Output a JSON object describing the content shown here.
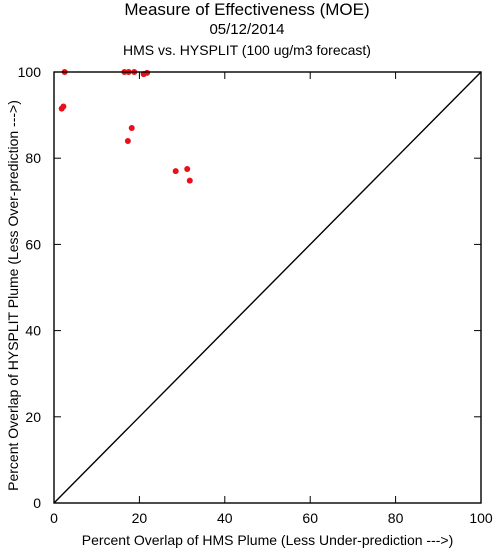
{
  "chart_data": {
    "type": "scatter",
    "title": "Measure of Effectiveness (MOE)",
    "subtitle": "05/12/2014",
    "subtitle2": "HMS vs. HYSPLIT  (100 ug/m3 forecast)",
    "xlabel": "Percent Overlap of HMS Plume (Less Under-prediction --->)",
    "ylabel": "Percent Overlap of HYSPLIT Plume (Less Over-prediction --->)",
    "xlim": [
      0,
      100
    ],
    "ylim": [
      0,
      100
    ],
    "xticks": [
      0,
      20,
      40,
      60,
      80,
      100
    ],
    "yticks": [
      0,
      20,
      40,
      60,
      80,
      100
    ],
    "grid": false,
    "diagonal_reference_line": true,
    "point_color": "#e8101a",
    "x": [
      2.5,
      16.5,
      17.5,
      18.8,
      21.0,
      21.8,
      1.8,
      2.2,
      18.2,
      17.3,
      28.5,
      31.2,
      31.8
    ],
    "y": [
      100,
      100,
      100,
      100,
      99.5,
      99.8,
      91.5,
      92.0,
      87.0,
      84.0,
      77.0,
      77.5,
      74.8
    ]
  }
}
